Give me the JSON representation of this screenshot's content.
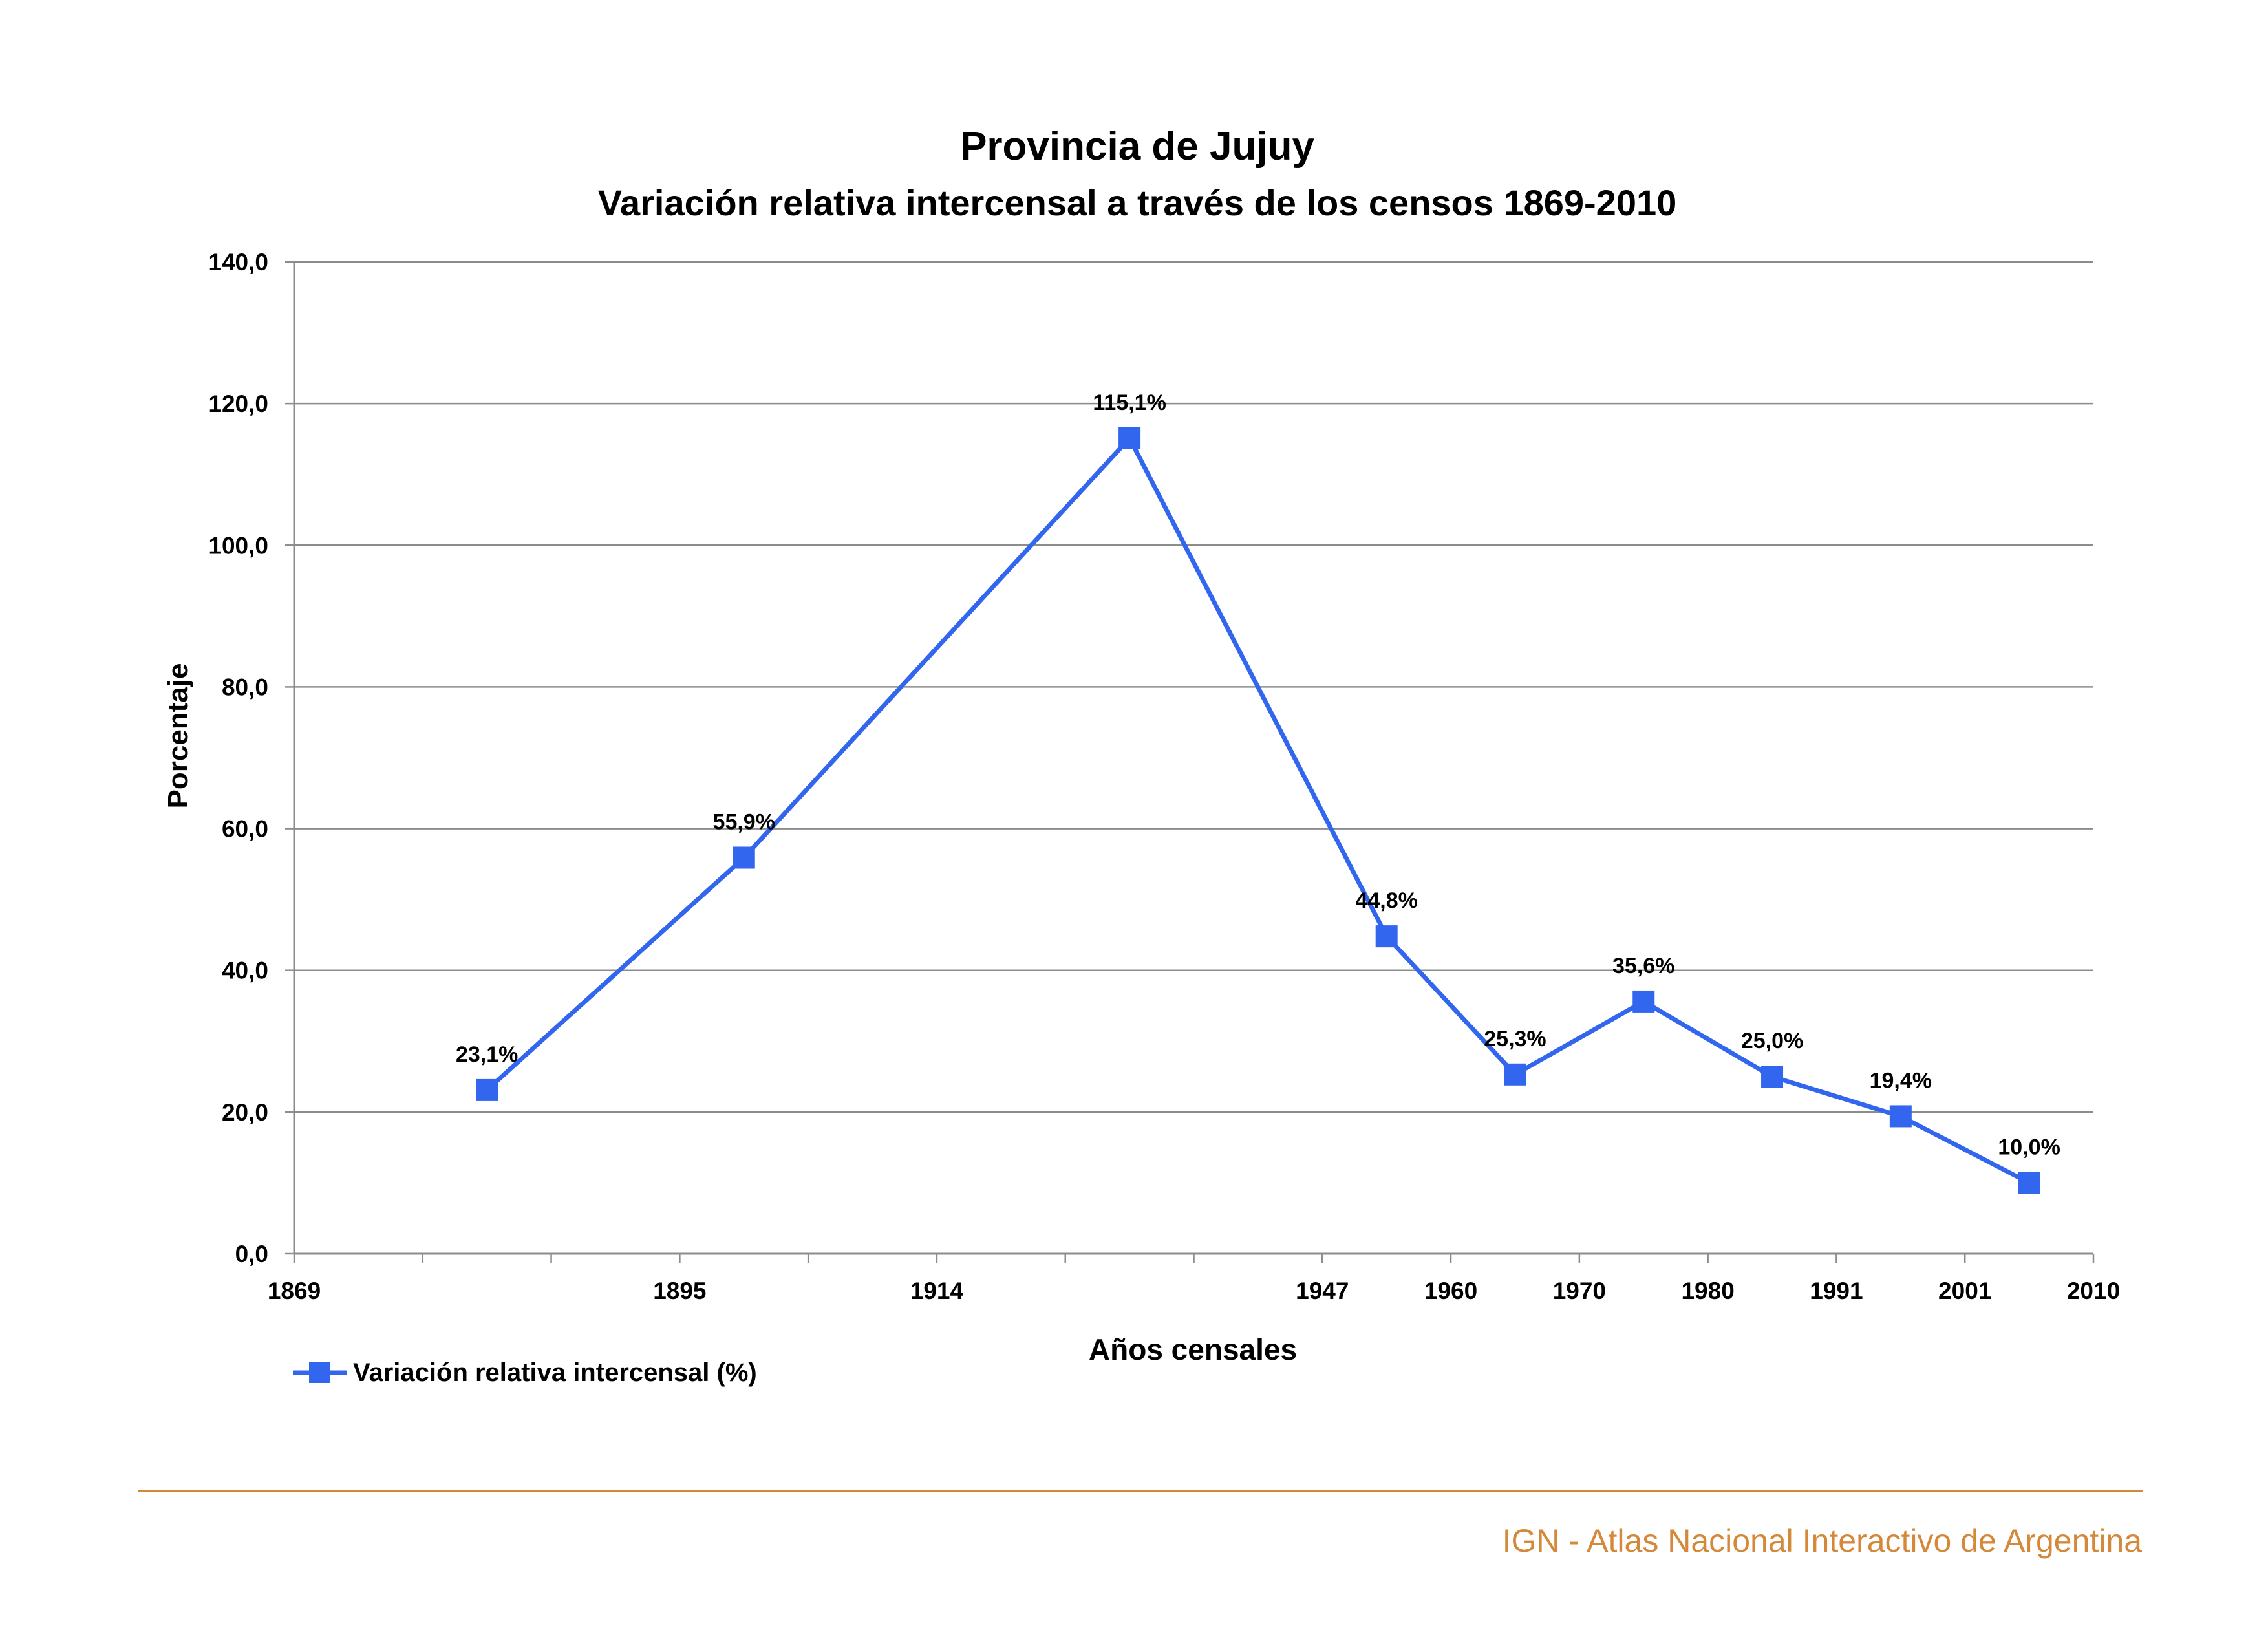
{
  "chart_data": {
    "type": "line",
    "title": "Provincia de Jujuy",
    "subtitle": "Variación relativa intercensal a través de los censos 1869-2010",
    "xlabel": "Años censales",
    "ylabel": "Porcentaje",
    "ylim": [
      0,
      140
    ],
    "yticks": [
      "0,0",
      "20,0",
      "40,0",
      "60,0",
      "80,0",
      "100,0",
      "120,0",
      "140,0"
    ],
    "xtick_labels": [
      "1869",
      "1895",
      "1914",
      "1947",
      "1960",
      "1970",
      "1980",
      "1991",
      "2001",
      "2010"
    ],
    "grid": true,
    "legend_position": "bottom-left",
    "series": [
      {
        "name": "Variación relativa intercensal (%)",
        "color": "#3366ee",
        "values": [
          23.1,
          55.9,
          115.1,
          44.8,
          25.3,
          35.6,
          25.0,
          19.4,
          10.0
        ],
        "labels": [
          "23,1%",
          "55,9%",
          "115,1%",
          "44,8%",
          "25,3%",
          "35,6%",
          "25,0%",
          "19,4%",
          "10,0%"
        ]
      }
    ]
  },
  "footer": {
    "credit": "IGN - Atlas Nacional Interactivo de Argentina",
    "color": "#d4893a"
  }
}
